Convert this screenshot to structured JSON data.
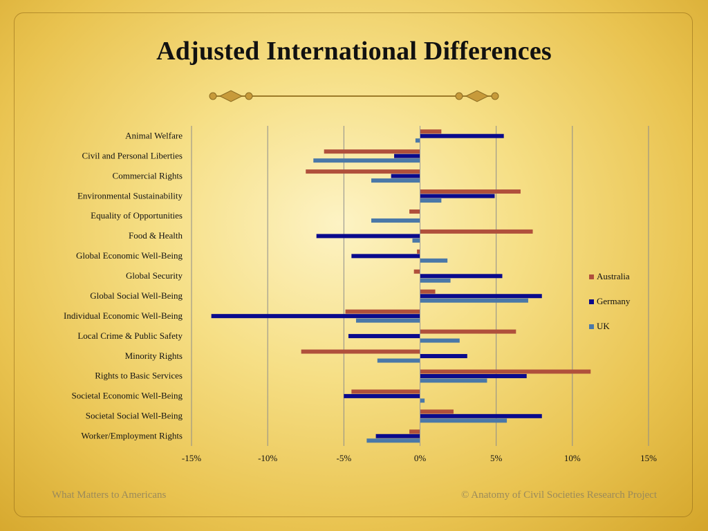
{
  "title": "Adjusted International Differences",
  "footer": {
    "left": "What Matters to Americans",
    "right": "© Anatomy of Civil Societies Research Project"
  },
  "colors": {
    "Australia": "#b0503c",
    "Germany": "#0a0a8c",
    "UK": "#4a78a8",
    "gridline": "#8c8c8c"
  },
  "chart_data": {
    "type": "bar",
    "orientation": "horizontal",
    "xlim": [
      -15,
      15
    ],
    "x_ticks": [
      "-15%",
      "-10%",
      "-5%",
      "0%",
      "5%",
      "10%",
      "15%"
    ],
    "x_tick_values": [
      -15,
      -10,
      -5,
      0,
      5,
      10,
      15
    ],
    "legend_position": "right",
    "categories": [
      "Animal Welfare",
      "Civil and Personal Liberties",
      "Commercial Rights",
      "Environmental Sustainability",
      "Equality of Opportunities",
      "Food & Health",
      "Global Economic Well-Being",
      "Global Security",
      "Global Social Well-Being",
      "Individual Economic Well-Being",
      "Local Crime & Public Safety",
      "Minority Rights",
      "Rights to Basic Services",
      "Societal Economic Well-Being",
      "Societal Social Well-Being",
      "Worker/Employment Rights"
    ],
    "series": [
      {
        "name": "Australia",
        "values": [
          1.4,
          -6.3,
          -7.5,
          6.6,
          -0.7,
          7.4,
          -0.2,
          -0.4,
          1.0,
          -4.9,
          6.3,
          -7.8,
          11.2,
          -4.5,
          2.2,
          -0.7
        ]
      },
      {
        "name": "Germany",
        "values": [
          5.5,
          -1.7,
          -1.9,
          4.9,
          0.0,
          -6.8,
          -4.5,
          5.4,
          8.0,
          -13.7,
          -4.7,
          3.1,
          7.0,
          -5.0,
          8.0,
          -2.9
        ]
      },
      {
        "name": "UK",
        "values": [
          -0.3,
          -7.0,
          -3.2,
          1.4,
          -3.2,
          -0.5,
          1.8,
          2.0,
          7.1,
          -4.2,
          2.6,
          -2.8,
          4.4,
          0.3,
          5.7,
          -3.5
        ]
      }
    ]
  }
}
